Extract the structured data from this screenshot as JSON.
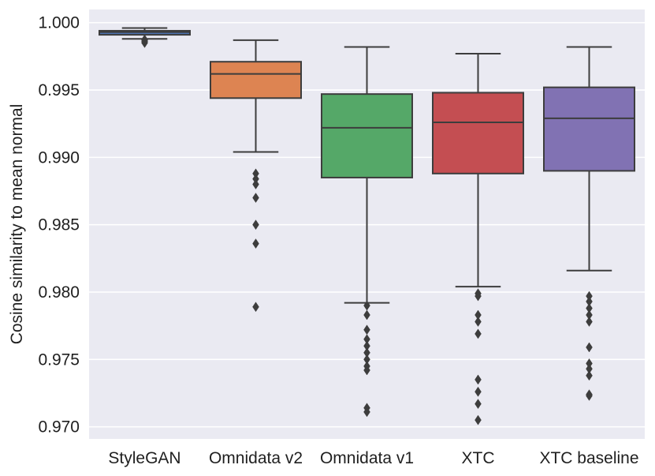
{
  "chart_data": {
    "type": "box",
    "title": "",
    "xlabel": "",
    "ylabel": "Cosine similarity to mean normal",
    "ylim": [
      0.9691,
      1.00098
    ],
    "yticks": [
      0.97,
      0.975,
      0.98,
      0.985,
      0.99,
      0.995,
      1.0
    ],
    "ytick_labels": [
      "0.970",
      "0.975",
      "0.980",
      "0.985",
      "0.990",
      "0.995",
      "1.000"
    ],
    "grid": true,
    "background": "#eaeaf2",
    "grid_color": "#ffffff",
    "line_color": "#3d3d3d",
    "categories": [
      "StyleGAN",
      "Omnidata v2",
      "Omnidata v1",
      "XTC",
      "XTC baseline"
    ],
    "boxes": [
      {
        "name": "StyleGAN",
        "color": "#4c72b0",
        "whisker_low": 0.9988,
        "q1": 0.9991,
        "median": 0.9993,
        "q3": 0.9994,
        "whisker_high": 0.9996,
        "outliers": [
          0.9985,
          0.9986,
          0.9987,
          0.99875
        ]
      },
      {
        "name": "Omnidata v2",
        "color": "#dd8452",
        "whisker_low": 0.9904,
        "q1": 0.9944,
        "median": 0.9962,
        "q3": 0.9971,
        "whisker_high": 0.9987,
        "outliers": [
          0.9888,
          0.9884,
          0.988,
          0.987,
          0.985,
          0.9836,
          0.9789
        ]
      },
      {
        "name": "Omnidata v1",
        "color": "#55a868",
        "whisker_low": 0.9792,
        "q1": 0.9885,
        "median": 0.9922,
        "q3": 0.9947,
        "whisker_high": 0.9982,
        "outliers": [
          0.979,
          0.9783,
          0.9772,
          0.9765,
          0.976,
          0.9755,
          0.975,
          0.9745,
          0.9742,
          0.9714,
          0.9711
        ]
      },
      {
        "name": "XTC",
        "color": "#c44e52",
        "whisker_low": 0.9804,
        "q1": 0.9888,
        "median": 0.9926,
        "q3": 0.9948,
        "whisker_high": 0.9977,
        "outliers": [
          0.9799,
          0.9797,
          0.9783,
          0.9778,
          0.9769,
          0.9735,
          0.9726,
          0.9717,
          0.9705
        ]
      },
      {
        "name": "XTC baseline",
        "color": "#8172b3",
        "whisker_low": 0.9816,
        "q1": 0.989,
        "median": 0.9929,
        "q3": 0.9952,
        "whisker_high": 0.9982,
        "outliers": [
          0.9797,
          0.9793,
          0.9788,
          0.9783,
          0.9778,
          0.9759,
          0.9747,
          0.9743,
          0.9738,
          0.9724,
          0.9723
        ]
      }
    ]
  }
}
